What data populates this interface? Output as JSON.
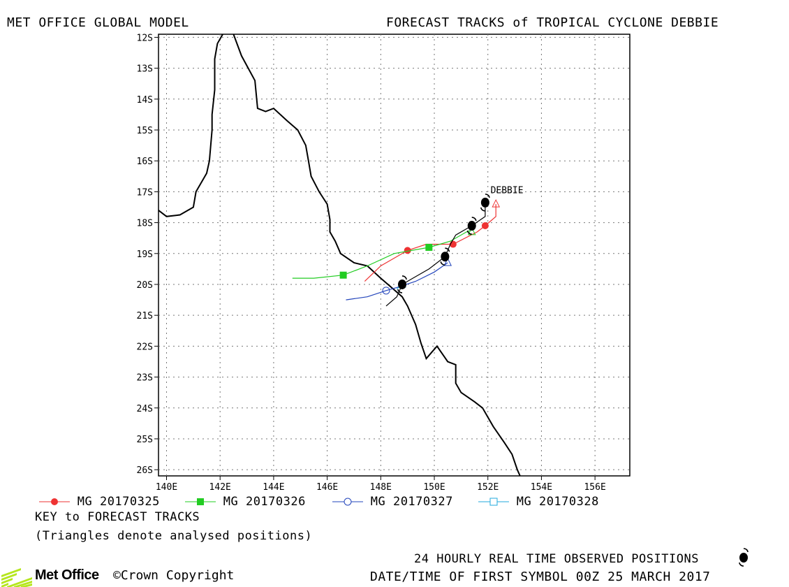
{
  "header": {
    "left_title": "MET OFFICE GLOBAL MODEL",
    "right_title": "FORECAST TRACKS of TROPICAL CYCLONE DEBBIE"
  },
  "map": {
    "lon_range": [
      139.7,
      157.3
    ],
    "lat_range": [
      -26.2,
      -11.9
    ],
    "lon_ticks": [
      140,
      142,
      144,
      146,
      148,
      150,
      152,
      154,
      156
    ],
    "lon_labels": [
      "140E",
      "142E",
      "144E",
      "146E",
      "148E",
      "150E",
      "152E",
      "154E",
      "156E"
    ],
    "lat_ticks": [
      -12,
      -13,
      -14,
      -15,
      -16,
      -17,
      -18,
      -19,
      -20,
      -21,
      -22,
      -23,
      -24,
      -25,
      -26
    ],
    "lat_labels": [
      "12S",
      "13S",
      "14S",
      "15S",
      "16S",
      "17S",
      "18S",
      "19S",
      "20S",
      "21S",
      "22S",
      "23S",
      "24S",
      "25S",
      "26S"
    ],
    "grid": "dotted",
    "storm_label": "DEBBIE",
    "storm_label_pos": {
      "lon": 152.1,
      "lat": -17.05
    },
    "coastline": [
      [
        139.7,
        -17.6
      ],
      [
        140.0,
        -17.8
      ],
      [
        140.5,
        -17.75
      ],
      [
        141.0,
        -17.5
      ],
      [
        141.1,
        -17.0
      ],
      [
        141.5,
        -16.4
      ],
      [
        141.6,
        -16.0
      ],
      [
        141.7,
        -15.0
      ],
      [
        141.7,
        -14.5
      ],
      [
        141.8,
        -13.7
      ],
      [
        141.8,
        -12.7
      ],
      [
        141.9,
        -12.2
      ],
      [
        142.1,
        -11.9
      ]
    ],
    "coastline_east": [
      [
        142.5,
        -11.9
      ],
      [
        142.8,
        -12.6
      ],
      [
        143.3,
        -13.4
      ],
      [
        143.4,
        -14.3
      ],
      [
        143.7,
        -14.4
      ],
      [
        144.0,
        -14.3
      ],
      [
        144.5,
        -14.7
      ],
      [
        144.9,
        -15.0
      ],
      [
        145.2,
        -15.5
      ],
      [
        145.3,
        -16.0
      ],
      [
        145.4,
        -16.5
      ],
      [
        145.7,
        -17.0
      ],
      [
        146.0,
        -17.4
      ],
      [
        146.1,
        -17.9
      ],
      [
        146.1,
        -18.3
      ],
      [
        146.3,
        -18.6
      ],
      [
        146.5,
        -19.0
      ],
      [
        147.0,
        -19.3
      ],
      [
        147.5,
        -19.4
      ],
      [
        148.0,
        -19.8
      ],
      [
        148.4,
        -20.1
      ],
      [
        148.8,
        -20.4
      ],
      [
        149.0,
        -20.7
      ],
      [
        149.3,
        -21.3
      ],
      [
        149.5,
        -21.9
      ],
      [
        149.7,
        -22.4
      ],
      [
        149.9,
        -22.2
      ],
      [
        150.1,
        -22.0
      ],
      [
        150.5,
        -22.5
      ],
      [
        150.8,
        -22.6
      ],
      [
        150.8,
        -23.2
      ],
      [
        151.0,
        -23.5
      ],
      [
        151.5,
        -23.8
      ],
      [
        151.8,
        -24.0
      ],
      [
        152.2,
        -24.6
      ],
      [
        152.6,
        -25.1
      ],
      [
        152.9,
        -25.5
      ],
      [
        153.1,
        -26.0
      ],
      [
        153.2,
        -26.2
      ]
    ],
    "observed_track": [
      [
        151.9,
        -17.3
      ],
      [
        151.9,
        -17.8
      ],
      [
        151.4,
        -18.1
      ],
      [
        150.8,
        -18.4
      ],
      [
        150.6,
        -18.7
      ],
      [
        150.4,
        -19.1
      ],
      [
        149.8,
        -19.5
      ],
      [
        149.2,
        -19.8
      ],
      [
        148.8,
        -20.0
      ],
      [
        148.6,
        -20.4
      ],
      [
        148.2,
        -20.7
      ]
    ],
    "observed_positions": [
      [
        151.9,
        -17.35
      ],
      [
        151.4,
        -18.1
      ],
      [
        150.4,
        -19.1
      ],
      [
        148.8,
        -20.0
      ]
    ]
  },
  "forecast_tracks": [
    {
      "name": "MG 20170325",
      "color": "#ee3333",
      "marker": "filled-circle",
      "track": [
        [
          152.3,
          -17.4
        ],
        [
          152.3,
          -17.8
        ],
        [
          151.9,
          -18.1
        ],
        [
          151.6,
          -18.3
        ],
        [
          150.7,
          -18.7
        ],
        [
          149.7,
          -18.7
        ],
        [
          149.0,
          -18.9
        ],
        [
          148.0,
          -19.4
        ],
        [
          147.4,
          -19.9
        ]
      ],
      "markers": [
        [
          151.9,
          -18.1
        ],
        [
          150.7,
          -18.7
        ],
        [
          149.0,
          -18.9
        ]
      ],
      "analysed": [
        [
          152.3,
          -17.4
        ]
      ]
    },
    {
      "name": "MG 20170326",
      "color": "#22cc22",
      "marker": "filled-square",
      "track": [
        [
          151.5,
          -18.2
        ],
        [
          151.2,
          -18.3
        ],
        [
          150.6,
          -18.6
        ],
        [
          149.8,
          -18.8
        ],
        [
          148.5,
          -19.0
        ],
        [
          147.5,
          -19.4
        ],
        [
          146.6,
          -19.7
        ],
        [
          145.5,
          -19.8
        ],
        [
          144.7,
          -19.8
        ]
      ],
      "markers": [
        [
          149.8,
          -18.8
        ],
        [
          146.6,
          -19.7
        ]
      ],
      "analysed": [
        [
          151.4,
          -18.3
        ]
      ]
    },
    {
      "name": "MG 20170327",
      "color": "#2244bb",
      "marker": "open-circle",
      "track": [
        [
          150.5,
          -19.3
        ],
        [
          150.0,
          -19.6
        ],
        [
          149.3,
          -19.9
        ],
        [
          148.6,
          -20.1
        ],
        [
          148.2,
          -20.2
        ],
        [
          147.5,
          -20.4
        ],
        [
          146.7,
          -20.5
        ]
      ],
      "markers": [
        [
          148.2,
          -20.2
        ]
      ],
      "analysed": [
        [
          150.5,
          -19.3
        ]
      ]
    },
    {
      "name": "MG 20170328",
      "color": "#22aadd",
      "marker": "open-square",
      "track": [
        [
          148.8,
          -20.0
        ],
        [
          148.6,
          -20.15
        ]
      ],
      "markers": [],
      "analysed": [
        [
          148.8,
          -20.0
        ]
      ]
    }
  ],
  "footer": {
    "key_title": "KEY to FORECAST TRACKS",
    "key_note": "(Triangles denote analysed positions)",
    "observed_label": "24 HOURLY REAL TIME OBSERVED POSITIONS",
    "datetime_label": "DATE/TIME OF FIRST SYMBOL 00Z 25 MARCH 2017",
    "logo_text": "Met Office",
    "copyright": "©Crown Copyright",
    "logo_color": "#b5e61d"
  }
}
